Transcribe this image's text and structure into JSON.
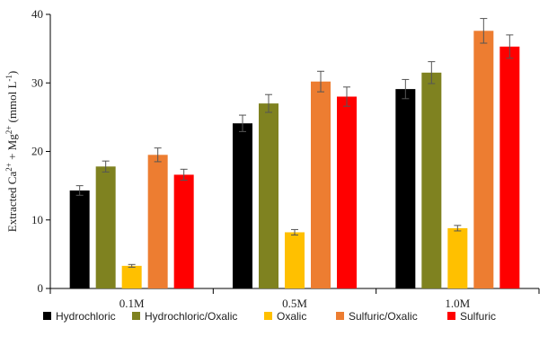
{
  "chart_data": {
    "type": "bar",
    "title": "",
    "xlabel": "",
    "ylabel": {
      "parts": [
        {
          "t": "Extracted Ca"
        },
        {
          "t": "2+",
          "sup": true
        },
        {
          "t": " + Mg"
        },
        {
          "t": "2+",
          "sup": true
        },
        {
          "t": "  (mmol L"
        },
        {
          "t": "-1",
          "sup": true
        },
        {
          "t": ")"
        }
      ]
    },
    "ylim": [
      0,
      40
    ],
    "yticks": [
      "0",
      "10",
      "20",
      "30",
      "40"
    ],
    "categories": [
      "0.1M",
      "0.5M",
      "1.0M"
    ],
    "grid": false,
    "legend": "bottom",
    "series": [
      {
        "name": "Hydrochloric",
        "color": "#000000",
        "values": [
          14.3,
          24.1,
          29.1
        ],
        "errors": [
          0.7,
          1.2,
          1.4
        ]
      },
      {
        "name": "Hydrochloric/Oxalic",
        "color": "#7f8220",
        "values": [
          17.8,
          27.0,
          31.5
        ],
        "errors": [
          0.8,
          1.3,
          1.6
        ]
      },
      {
        "name": "Oxalic",
        "color": "#ffc000",
        "values": [
          3.3,
          8.2,
          8.8
        ],
        "errors": [
          0.2,
          0.4,
          0.4
        ]
      },
      {
        "name": "Sulfuric/Oxalic",
        "color": "#ed7d31",
        "values": [
          19.5,
          30.2,
          37.6
        ],
        "errors": [
          1.0,
          1.5,
          1.8
        ]
      },
      {
        "name": "Sulfuric",
        "color": "#ff0000",
        "values": [
          16.6,
          28.0,
          35.3
        ],
        "errors": [
          0.8,
          1.4,
          1.7
        ]
      }
    ]
  }
}
